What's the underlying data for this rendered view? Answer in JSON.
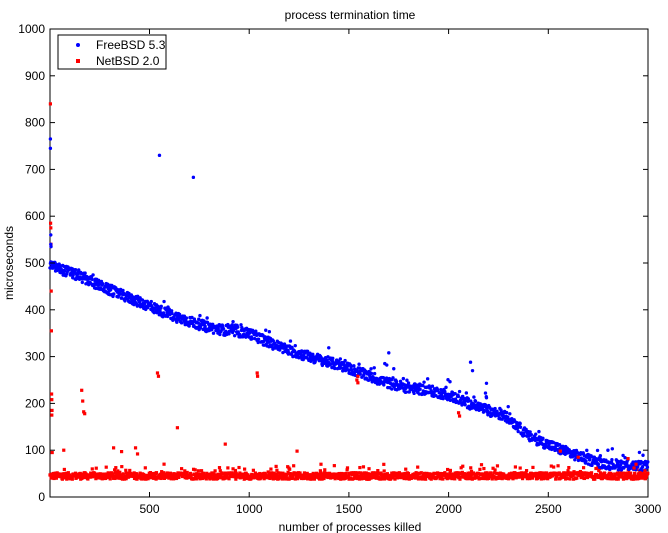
{
  "chart_data": {
    "type": "scatter",
    "title": "process termination time",
    "xlabel": "number of processes killed",
    "ylabel": "microseconds",
    "xlim": [
      1,
      3000
    ],
    "ylim": [
      0,
      1000
    ],
    "xticks": [
      500,
      1000,
      1500,
      2000,
      2500,
      3000
    ],
    "yticks": [
      0,
      100,
      200,
      300,
      400,
      500,
      600,
      700,
      800,
      900,
      1000
    ],
    "legend_placement": "top-left",
    "grid": false,
    "series": [
      {
        "name": "FreeBSD 5.3",
        "color": "#0000ff",
        "marker": "dot",
        "trend": [
          [
            1,
            495
          ],
          [
            100,
            480
          ],
          [
            200,
            462
          ],
          [
            300,
            442
          ],
          [
            400,
            425
          ],
          [
            500,
            408
          ],
          [
            600,
            390
          ],
          [
            700,
            375
          ],
          [
            800,
            362
          ],
          [
            900,
            355
          ],
          [
            1000,
            350
          ],
          [
            1100,
            330
          ],
          [
            1200,
            313
          ],
          [
            1300,
            300
          ],
          [
            1400,
            288
          ],
          [
            1500,
            275
          ],
          [
            1600,
            258
          ],
          [
            1700,
            243
          ],
          [
            1800,
            233
          ],
          [
            1900,
            228
          ],
          [
            2000,
            218
          ],
          [
            2100,
            200
          ],
          [
            2200,
            185
          ],
          [
            2300,
            170
          ],
          [
            2400,
            130
          ],
          [
            2500,
            112
          ],
          [
            2600,
            95
          ],
          [
            2700,
            80
          ],
          [
            2800,
            70
          ],
          [
            2900,
            68
          ],
          [
            3000,
            65
          ]
        ],
        "outliers": [
          [
            3,
            765
          ],
          [
            3,
            745
          ],
          [
            5,
            560
          ],
          [
            5,
            540
          ],
          [
            6,
            535
          ],
          [
            550,
            730
          ],
          [
            720,
            683
          ],
          [
            1700,
            308
          ],
          [
            1680,
            285
          ],
          [
            2110,
            288
          ],
          [
            2120,
            270
          ],
          [
            2190,
            243
          ],
          [
            2185,
            222
          ],
          [
            2190,
            212
          ],
          [
            1690,
            282
          ]
        ]
      },
      {
        "name": "NetBSD 2.0",
        "color": "#ff0000",
        "marker": "square",
        "trend": [
          [
            1,
            45
          ],
          [
            500,
            45
          ],
          [
            1000,
            45
          ],
          [
            1500,
            45
          ],
          [
            2000,
            45
          ],
          [
            2500,
            45
          ],
          [
            3000,
            45
          ]
        ],
        "outliers": [
          [
            3,
            840
          ],
          [
            4,
            585
          ],
          [
            5,
            575
          ],
          [
            6,
            540
          ],
          [
            7,
            440
          ],
          [
            8,
            355
          ],
          [
            9,
            220
          ],
          [
            10,
            208
          ],
          [
            11,
            185
          ],
          [
            10,
            175
          ],
          [
            12,
            95
          ],
          [
            70,
            100
          ],
          [
            160,
            228
          ],
          [
            165,
            205
          ],
          [
            170,
            182
          ],
          [
            175,
            178
          ],
          [
            320,
            105
          ],
          [
            360,
            97
          ],
          [
            430,
            105
          ],
          [
            440,
            92
          ],
          [
            540,
            265
          ],
          [
            545,
            258
          ],
          [
            640,
            148
          ],
          [
            880,
            113
          ],
          [
            1040,
            265
          ],
          [
            1042,
            258
          ],
          [
            1240,
            98
          ],
          [
            1360,
            70
          ],
          [
            1540,
            250
          ],
          [
            1545,
            244
          ],
          [
            1545,
            258
          ],
          [
            2050,
            180
          ],
          [
            2055,
            173
          ],
          [
            2560,
            98
          ],
          [
            2650,
            85
          ],
          [
            2900,
            82
          ],
          [
            2930,
            62
          ],
          [
            2940,
            70
          ],
          [
            2960,
            52
          ],
          [
            2975,
            50
          ],
          [
            2985,
            56
          ]
        ]
      }
    ]
  }
}
